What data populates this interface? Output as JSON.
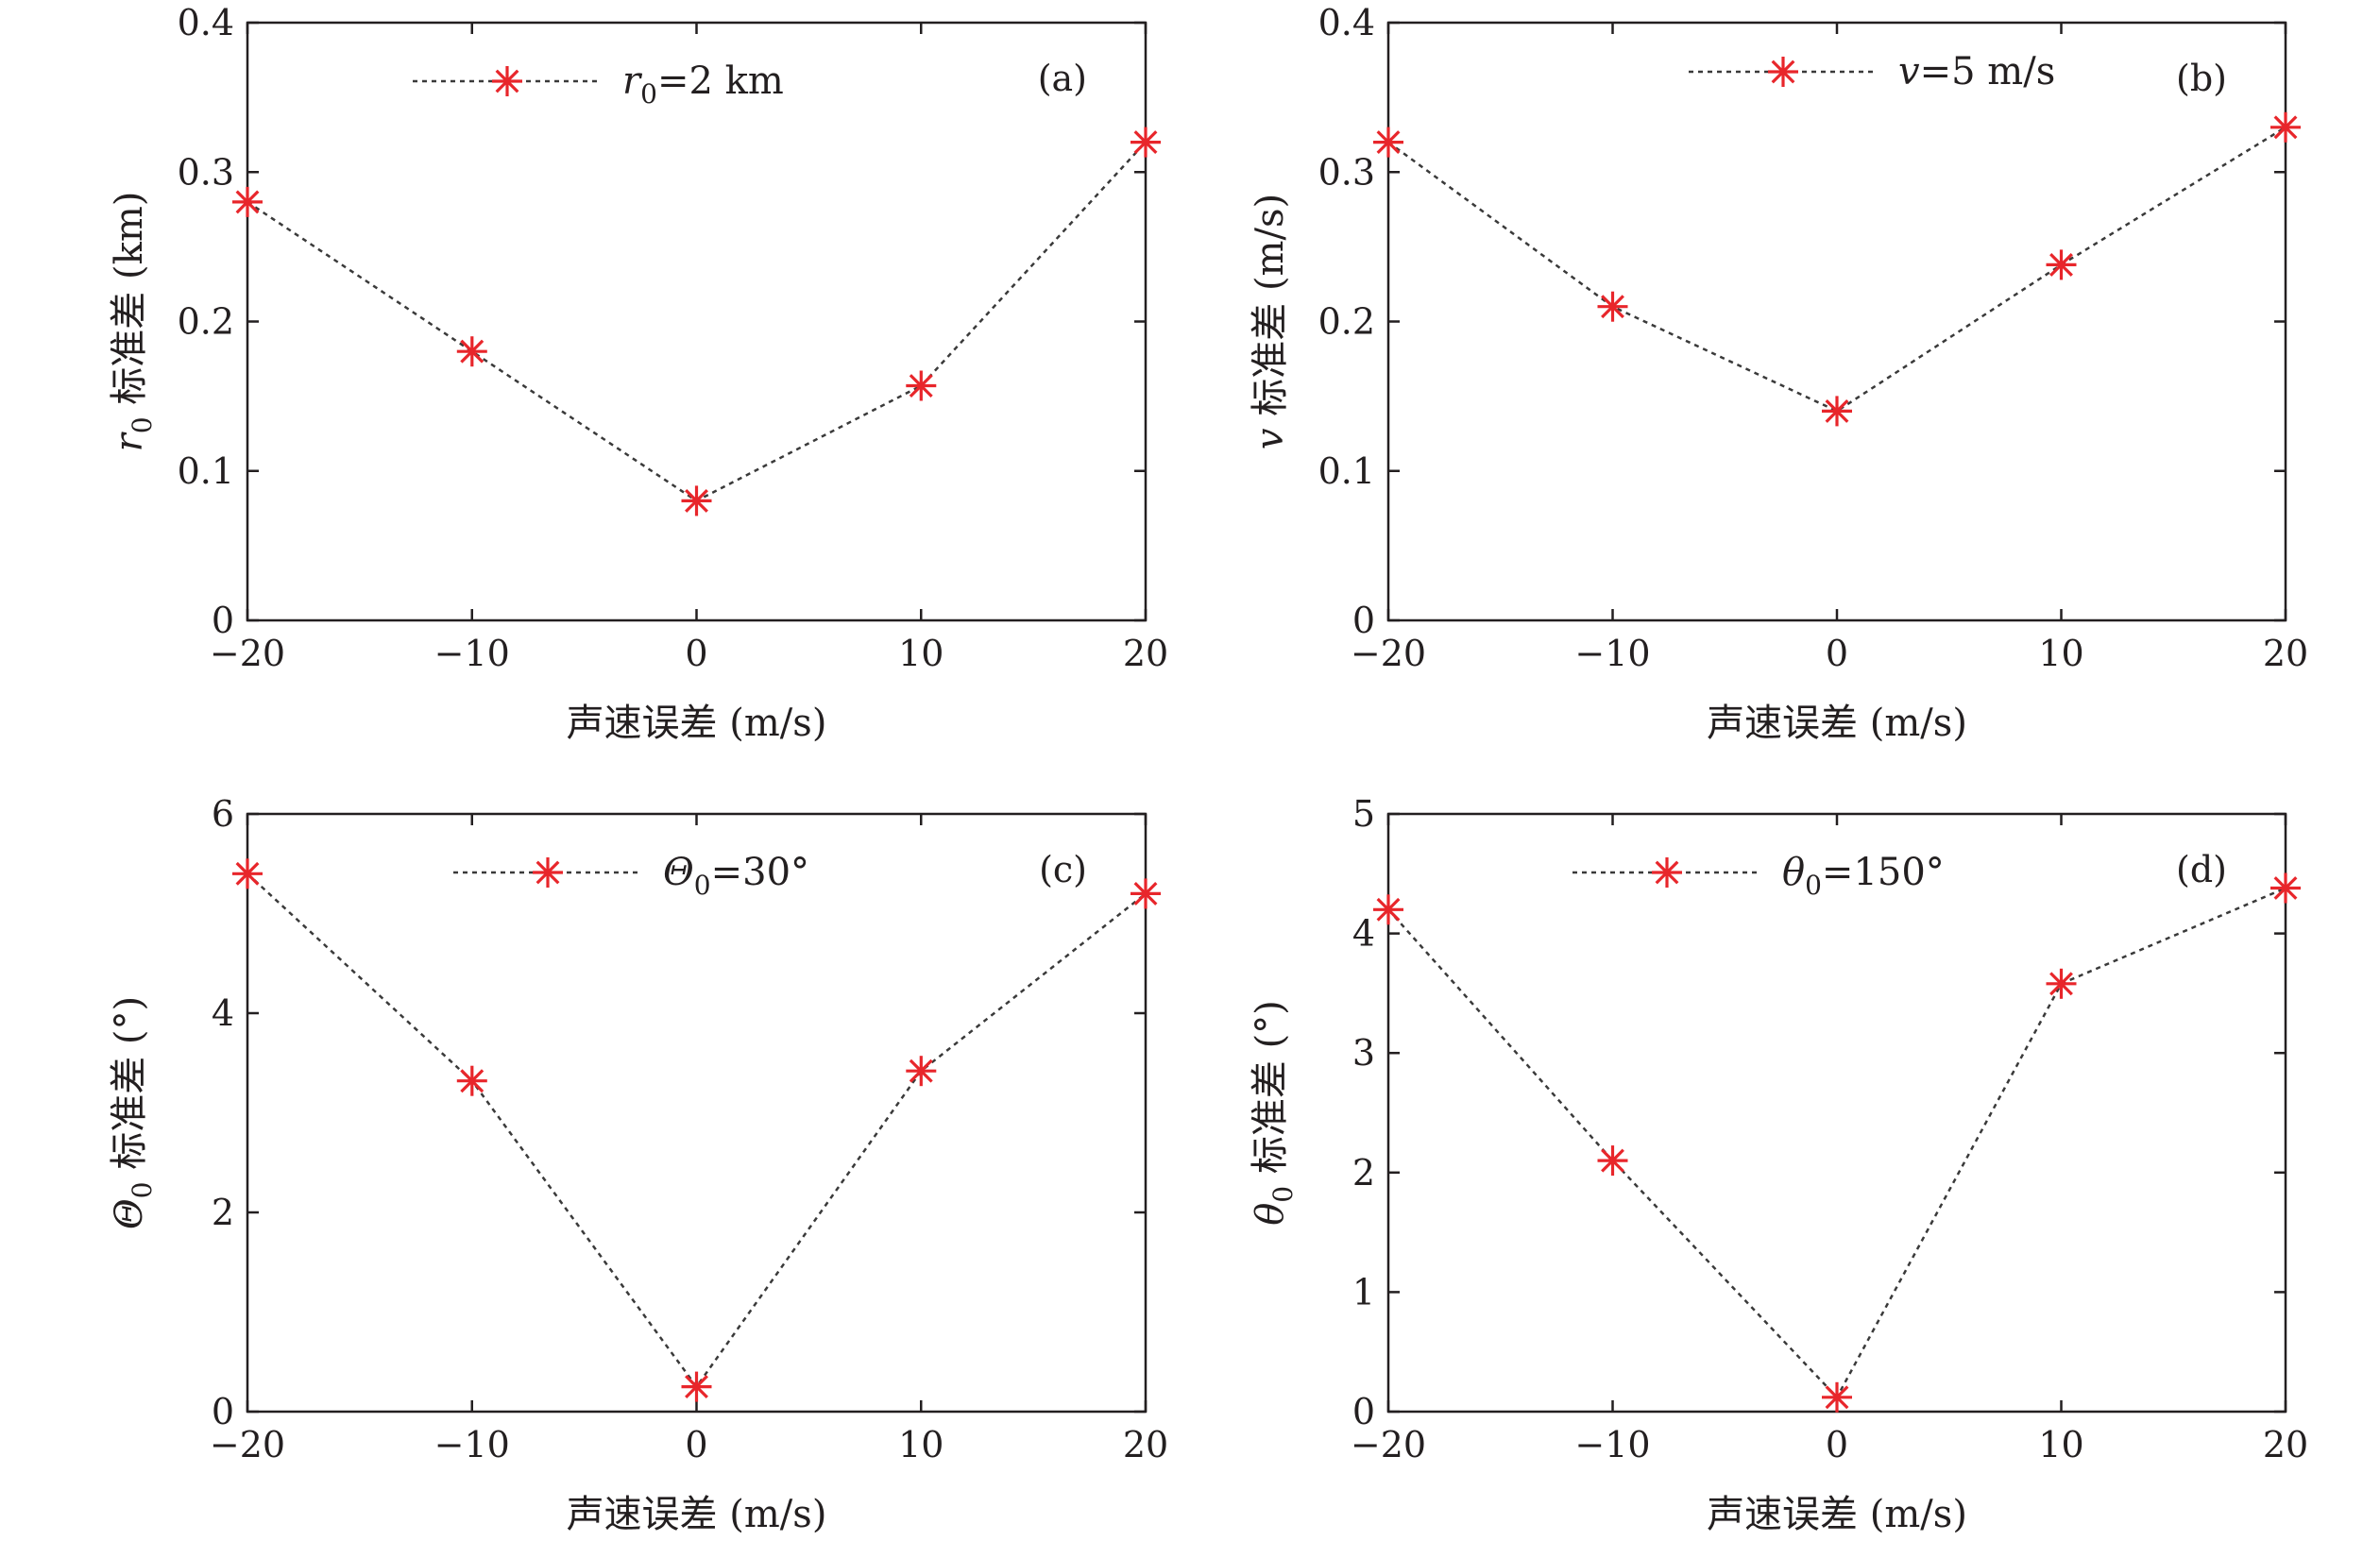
{
  "chart_data": [
    {
      "id": "a",
      "type": "line",
      "panel_label": "(a)",
      "xlabel": "声速误差 (m/s)",
      "ylabel": {
        "symbol": "r",
        "sub": "0",
        "text": " 标准差 (km)"
      },
      "xlim": [
        -20,
        20
      ],
      "ylim": [
        0,
        0.4
      ],
      "xticks": [
        -20,
        -10,
        0,
        10,
        20
      ],
      "xtick_labels": [
        "−20",
        "−10",
        "0",
        "10",
        "20"
      ],
      "yticks": [
        0,
        0.1,
        0.2,
        0.3,
        0.4
      ],
      "ytick_labels": [
        "0",
        "0.1",
        "0.2",
        "0.3",
        "0.4"
      ],
      "legend": {
        "symbol": "r",
        "sub": "0",
        "text": "=2 km",
        "placement": "top-center"
      },
      "series": [
        {
          "x": [
            -20,
            -10,
            0,
            10,
            20
          ],
          "y": [
            0.28,
            0.18,
            0.08,
            0.157,
            0.32
          ],
          "marker": "asterisk",
          "color": "#e8262b",
          "line_style": "dotted"
        }
      ]
    },
    {
      "id": "b",
      "type": "line",
      "panel_label": "(b)",
      "xlabel": "声速误差 (m/s)",
      "ylabel": {
        "symbol": "v",
        "sub": "",
        "text": " 标准差 (m/s)"
      },
      "xlim": [
        -20,
        20
      ],
      "ylim": [
        0,
        0.4
      ],
      "xticks": [
        -20,
        -10,
        0,
        10,
        20
      ],
      "xtick_labels": [
        "−20",
        "−10",
        "0",
        "10",
        "20"
      ],
      "yticks": [
        0,
        0.1,
        0.2,
        0.3,
        0.4
      ],
      "ytick_labels": [
        "0",
        "0.1",
        "0.2",
        "0.3",
        "0.4"
      ],
      "legend": {
        "symbol": "v",
        "sub": "",
        "text": "=5 m/s",
        "placement": "top-center"
      },
      "series": [
        {
          "x": [
            -20,
            -10,
            0,
            10,
            20
          ],
          "y": [
            0.32,
            0.21,
            0.14,
            0.238,
            0.33
          ],
          "marker": "asterisk",
          "color": "#e8262b",
          "line_style": "dotted"
        }
      ]
    },
    {
      "id": "c",
      "type": "line",
      "panel_label": "(c)",
      "xlabel": "声速误差 (m/s)",
      "ylabel": {
        "symbol": "Θ",
        "sub": "0",
        "text": " 标准差 (°)"
      },
      "xlim": [
        -20,
        20
      ],
      "ylim": [
        0,
        6
      ],
      "xticks": [
        -20,
        -10,
        0,
        10,
        20
      ],
      "xtick_labels": [
        "−20",
        "−10",
        "0",
        "10",
        "20"
      ],
      "yticks": [
        0,
        2,
        4,
        6
      ],
      "ytick_labels": [
        "0",
        "2",
        "4",
        "6"
      ],
      "legend": {
        "symbol": "Θ",
        "sub": "0",
        "text": "=30°",
        "placement": "top-center"
      },
      "series": [
        {
          "x": [
            -20,
            -10,
            0,
            10,
            20
          ],
          "y": [
            5.4,
            3.32,
            0.25,
            3.42,
            5.2
          ],
          "marker": "asterisk",
          "color": "#e8262b",
          "line_style": "dotted"
        }
      ]
    },
    {
      "id": "d",
      "type": "line",
      "panel_label": "(d)",
      "xlabel": "声速误差 (m/s)",
      "ylabel": {
        "symbol": "θ",
        "sub": "0",
        "text": " 标准差 (°)"
      },
      "xlim": [
        -20,
        20
      ],
      "ylim": [
        0,
        5
      ],
      "xticks": [
        -20,
        -10,
        0,
        10,
        20
      ],
      "xtick_labels": [
        "−20",
        "−10",
        "0",
        "10",
        "20"
      ],
      "yticks": [
        0,
        1,
        2,
        3,
        4,
        5
      ],
      "ytick_labels": [
        "0",
        "1",
        "2",
        "3",
        "4",
        "5"
      ],
      "legend": {
        "symbol": "θ",
        "sub": "0",
        "text": "=150°",
        "placement": "top-center"
      },
      "series": [
        {
          "x": [
            -20,
            -10,
            0,
            10,
            20
          ],
          "y": [
            4.2,
            2.1,
            0.12,
            3.58,
            4.38
          ],
          "marker": "asterisk",
          "color": "#e8262b",
          "line_style": "dotted"
        }
      ]
    }
  ]
}
